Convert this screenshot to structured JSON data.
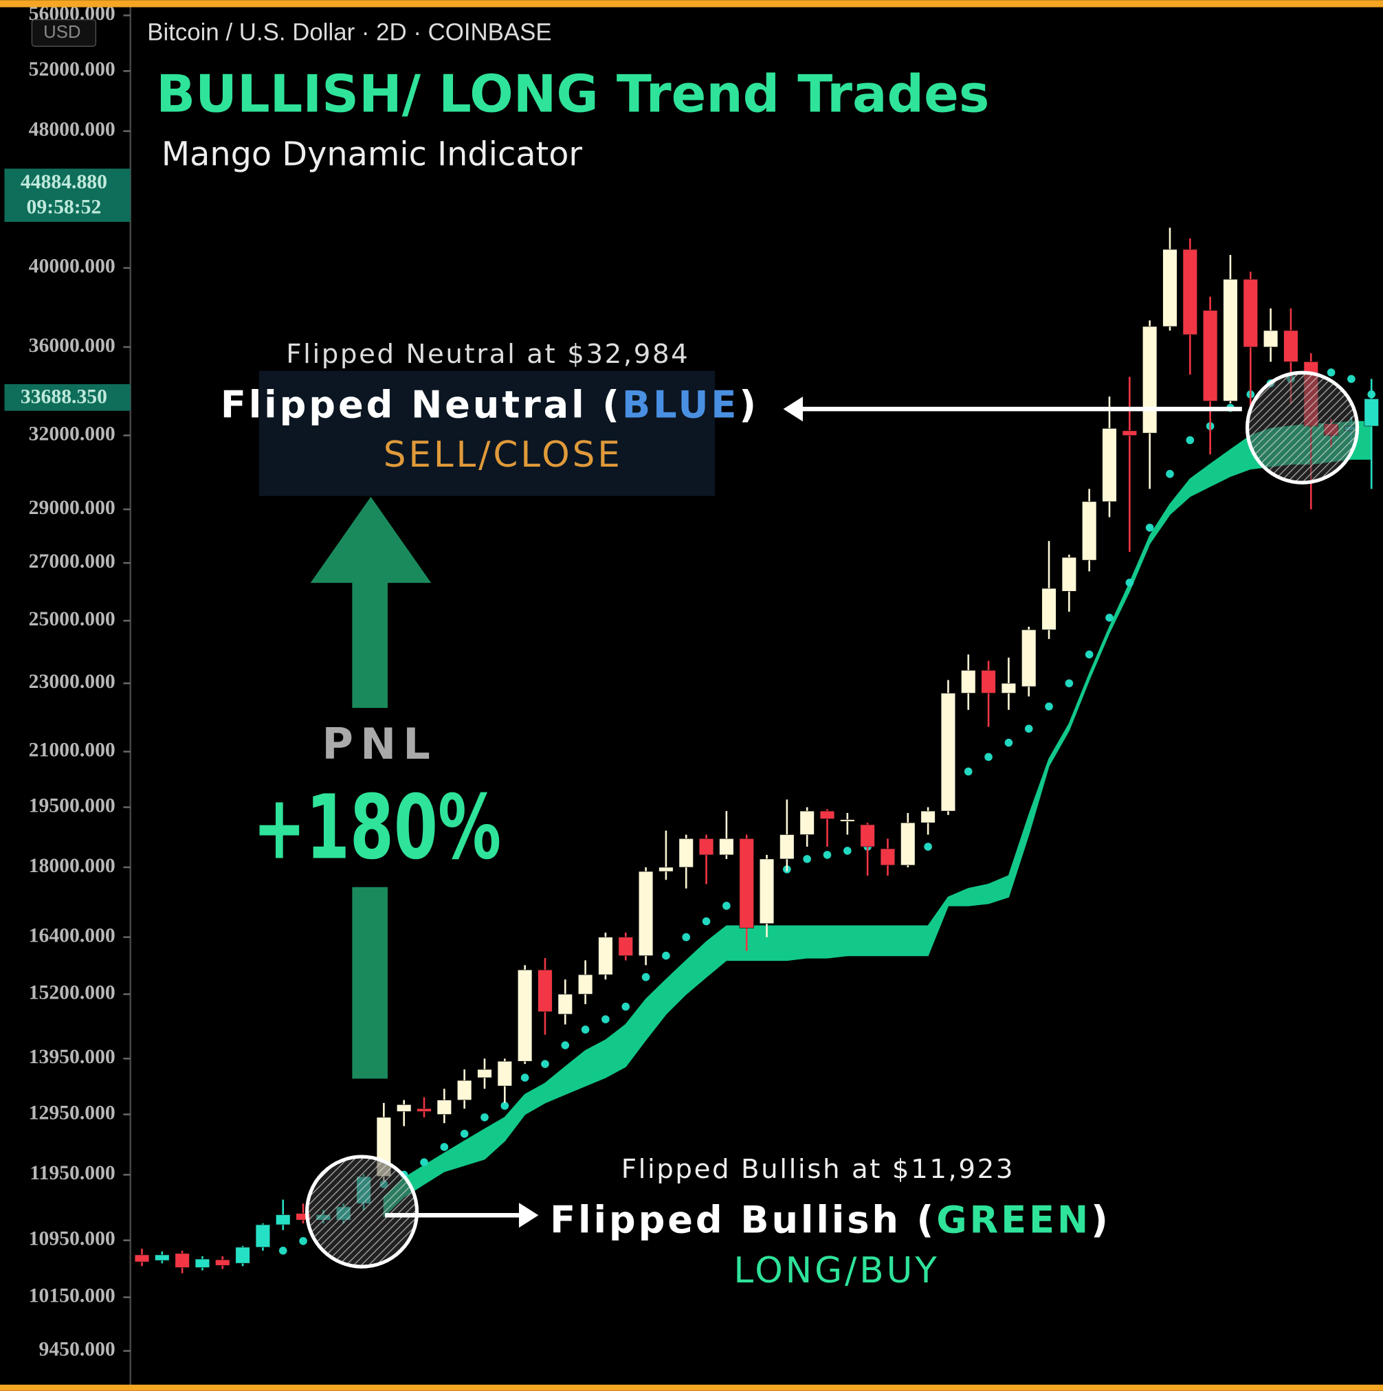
{
  "chart_data": {
    "type": "candlestick",
    "header": "Bitcoin / U.S. Dollar · 2D · COINBASE",
    "currency_button": "USD",
    "title": "BULLISH/ LONG Trend Trades",
    "subtitle": "Mango Dynamic Indicator",
    "price_tags": [
      [
        "44884.880",
        "09:58:52"
      ],
      [
        "33688.350"
      ]
    ],
    "annotations": {
      "neutral_price": "Flipped Neutral at $32,984",
      "neutral_state": [
        "Flipped Neutral (",
        "BLUE",
        ")"
      ],
      "neutral_action": "SELL/CLOSE",
      "pnl_label": "PNL",
      "pnl_value": "+180%",
      "bullish_price": "Flipped Bullish at $11,923",
      "bullish_state": [
        "Flipped Bullish (",
        "GREEN",
        ")"
      ],
      "bullish_action": "LONG/BUY"
    },
    "log_scale": true,
    "ylim": [
      8960,
      56480
    ],
    "yticks": [
      {
        "value": 56000,
        "label": "56000.000"
      },
      {
        "value": 52000,
        "label": "52000.000"
      },
      {
        "value": 48000,
        "label": "48000.000"
      },
      {
        "value": 40000,
        "label": "40000.000"
      },
      {
        "value": 36000,
        "label": "36000.000"
      },
      {
        "value": 32000,
        "label": "32000.000"
      },
      {
        "value": 29000,
        "label": "29000.000"
      },
      {
        "value": 27000,
        "label": "27000.000"
      },
      {
        "value": 25000,
        "label": "25000.000"
      },
      {
        "value": 23000,
        "label": "23000.000"
      },
      {
        "value": 21000,
        "label": "21000.000"
      },
      {
        "value": 19500,
        "label": "19500.000"
      },
      {
        "value": 18000,
        "label": "18000.000"
      },
      {
        "value": 16400,
        "label": "16400.000"
      },
      {
        "value": 15200,
        "label": "15200.000"
      },
      {
        "value": 13950,
        "label": "13950.000"
      },
      {
        "value": 12950,
        "label": "12950.000"
      },
      {
        "value": 11950,
        "label": "11950.000"
      },
      {
        "value": 10950,
        "label": "10950.000"
      },
      {
        "value": 10150,
        "label": "10150.000"
      },
      {
        "value": 9450,
        "label": "9450.000"
      }
    ],
    "categories": [
      null,
      null,
      null,
      null,
      null,
      null,
      null,
      null,
      null,
      null,
      null,
      null,
      null,
      null,
      null,
      null,
      null,
      null,
      null,
      null,
      null,
      null,
      null,
      null,
      null,
      null,
      null,
      null,
      null,
      null,
      null,
      null,
      null,
      null,
      null,
      null,
      null,
      null,
      null,
      null,
      null,
      null,
      null,
      null,
      null,
      null,
      null,
      null,
      null,
      null,
      null,
      null,
      null,
      null,
      null,
      null,
      null,
      null,
      null,
      null,
      null,
      null
    ],
    "open": [
      10740,
      10660,
      10760,
      10560,
      10670,
      10620,
      10850,
      11180,
      11350,
      11250,
      11250,
      11500,
      11923,
      13000,
      13050,
      12950,
      13200,
      13600,
      13450,
      13900,
      15700,
      14800,
      15200,
      15600,
      16400,
      16000,
      17900,
      18000,
      18700,
      18300,
      18700,
      16700,
      18200,
      18800,
      19400,
      19150,
      19050,
      18450,
      18050,
      19100,
      19400,
      22700,
      23400,
      22700,
      22900,
      24700,
      26000,
      27100,
      29300,
      32200,
      32100,
      37000,
      41000,
      37800,
      33500,
      39400,
      36000,
      36800,
      35300,
      32500,
      32200,
      32400
    ],
    "high": [
      10830,
      10790,
      10800,
      10720,
      10720,
      10870,
      11200,
      11560,
      11500,
      11400,
      11500,
      11960,
      13150,
      13200,
      13250,
      13400,
      13750,
      13950,
      13950,
      15800,
      15950,
      15500,
      15900,
      16500,
      16500,
      18000,
      18900,
      18800,
      18800,
      19400,
      18800,
      18300,
      19700,
      19500,
      19450,
      19350,
      19100,
      18700,
      19350,
      19500,
      23100,
      23900,
      23700,
      23800,
      24800,
      27800,
      27300,
      29800,
      33700,
      34600,
      37300,
      42200,
      41600,
      38500,
      40700,
      39800,
      37900,
      37900,
      35700,
      32700,
      32800,
      34500
    ],
    "low": [
      10580,
      10620,
      10480,
      10520,
      10540,
      10580,
      10800,
      11100,
      11200,
      11200,
      11200,
      11400,
      11850,
      12750,
      12900,
      12800,
      13050,
      13400,
      13150,
      13850,
      14400,
      14600,
      15000,
      15500,
      15900,
      15800,
      17700,
      17500,
      17600,
      18200,
      16100,
      16400,
      17900,
      18500,
      18500,
      18800,
      17800,
      17800,
      18000,
      18800,
      19300,
      22200,
      21700,
      22200,
      22600,
      24400,
      25300,
      26700,
      28700,
      27400,
      29800,
      36800,
      34700,
      31200,
      33400,
      33100,
      35300,
      33400,
      29000,
      31500,
      31600,
      29800
    ],
    "close": [
      10640,
      10740,
      10560,
      10680,
      10590,
      10850,
      11180,
      11330,
      11250,
      11330,
      11450,
      11920,
      12900,
      13120,
      13000,
      13200,
      13550,
      13750,
      13900,
      15700,
      14850,
      15200,
      15600,
      16400,
      16000,
      17900,
      18000,
      18700,
      18300,
      18700,
      16600,
      18200,
      18800,
      19400,
      19200,
      19180,
      18500,
      18050,
      19100,
      19400,
      22700,
      23400,
      22700,
      23000,
      24700,
      26100,
      27200,
      29300,
      32300,
      32000,
      37000,
      41000,
      36600,
      33500,
      39400,
      36000,
      36800,
      35300,
      32400,
      32000,
      32400,
      33600
    ],
    "candle_colors": [
      "#f23645",
      "#26e0c6",
      "#f23645",
      "#26e0c6",
      "#f23645",
      "#26e0c6",
      "#26e0c6",
      "#26e0c6",
      "#f23645",
      "#26e0c6",
      "#26e0c6",
      "#26e0c6",
      "#fff9d8",
      "#fff9d8",
      "#f23645",
      "#fff9d8",
      "#fff9d8",
      "#fff9d8",
      "#fff9d8",
      "#fff9d8",
      "#f23645",
      "#fff9d8",
      "#fff9d8",
      "#fff9d8",
      "#f23645",
      "#fff9d8",
      "#fff9d8",
      "#fff9d8",
      "#f23645",
      "#fff9d8",
      "#f23645",
      "#fff9d8",
      "#fff9d8",
      "#fff9d8",
      "#f23645",
      "#fff9d8",
      "#f23645",
      "#f23645",
      "#fff9d8",
      "#fff9d8",
      "#fff9d8",
      "#fff9d8",
      "#f23645",
      "#fff9d8",
      "#fff9d8",
      "#fff9d8",
      "#fff9d8",
      "#fff9d8",
      "#fff9d8",
      "#f23645",
      "#fff9d8",
      "#fff9d8",
      "#f23645",
      "#f23645",
      "#fff9d8",
      "#f23645",
      "#fff9d8",
      "#f23645",
      "#f23645",
      "#f23645",
      "#26e0c6",
      "#26e0c6"
    ],
    "stop_dots": [
      null,
      null,
      null,
      null,
      null,
      null,
      null,
      10800,
      10940,
      null,
      null,
      null,
      11800,
      11950,
      12150,
      12400,
      12620,
      12900,
      13100,
      13600,
      13850,
      14200,
      14500,
      14700,
      14950,
      15550,
      16000,
      16400,
      16750,
      17100,
      null,
      17800,
      17950,
      18200,
      18300,
      18400,
      18500,
      null,
      18500,
      18500,
      null,
      20450,
      20850,
      21250,
      21650,
      22300,
      23000,
      23900,
      25100,
      26300,
      28300,
      30400,
      31800,
      32400,
      33200,
      33800,
      34300,
      34500,
      34600,
      34800,
      34500,
      33800
    ],
    "stop_dot_color": "#22d8c0",
    "ribbon_upper": [
      null,
      null,
      null,
      null,
      null,
      null,
      null,
      null,
      null,
      null,
      null,
      null,
      11600,
      11900,
      12100,
      12300,
      12500,
      12700,
      12900,
      13300,
      13500,
      13800,
      14100,
      14300,
      14600,
      15100,
      15500,
      15900,
      16300,
      16650,
      16650,
      16650,
      16650,
      16650,
      16650,
      16650,
      16650,
      16650,
      16650,
      16650,
      17300,
      17500,
      17600,
      17800,
      19300,
      20800,
      21800,
      23300,
      24800,
      26300,
      28000,
      29200,
      30200,
      30800,
      31400,
      32000,
      32300,
      32400,
      32500,
      32500,
      32600,
      32600
    ],
    "ribbon_lower": [
      null,
      null,
      null,
      null,
      null,
      null,
      null,
      null,
      null,
      null,
      null,
      null,
      11300,
      11600,
      11800,
      12000,
      12100,
      12200,
      12500,
      12950,
      13150,
      13300,
      13450,
      13600,
      13800,
      14300,
      14800,
      15200,
      15550,
      15900,
      15900,
      15900,
      15900,
      15950,
      15950,
      16000,
      16000,
      16000,
      16000,
      16000,
      17100,
      17100,
      17150,
      17300,
      18800,
      20600,
      21600,
      23100,
      24600,
      26000,
      27700,
      28800,
      29500,
      29900,
      30300,
      30600,
      30700,
      30800,
      30800,
      30900,
      31000,
      31000
    ],
    "ribbon_color": "#13c98a"
  }
}
